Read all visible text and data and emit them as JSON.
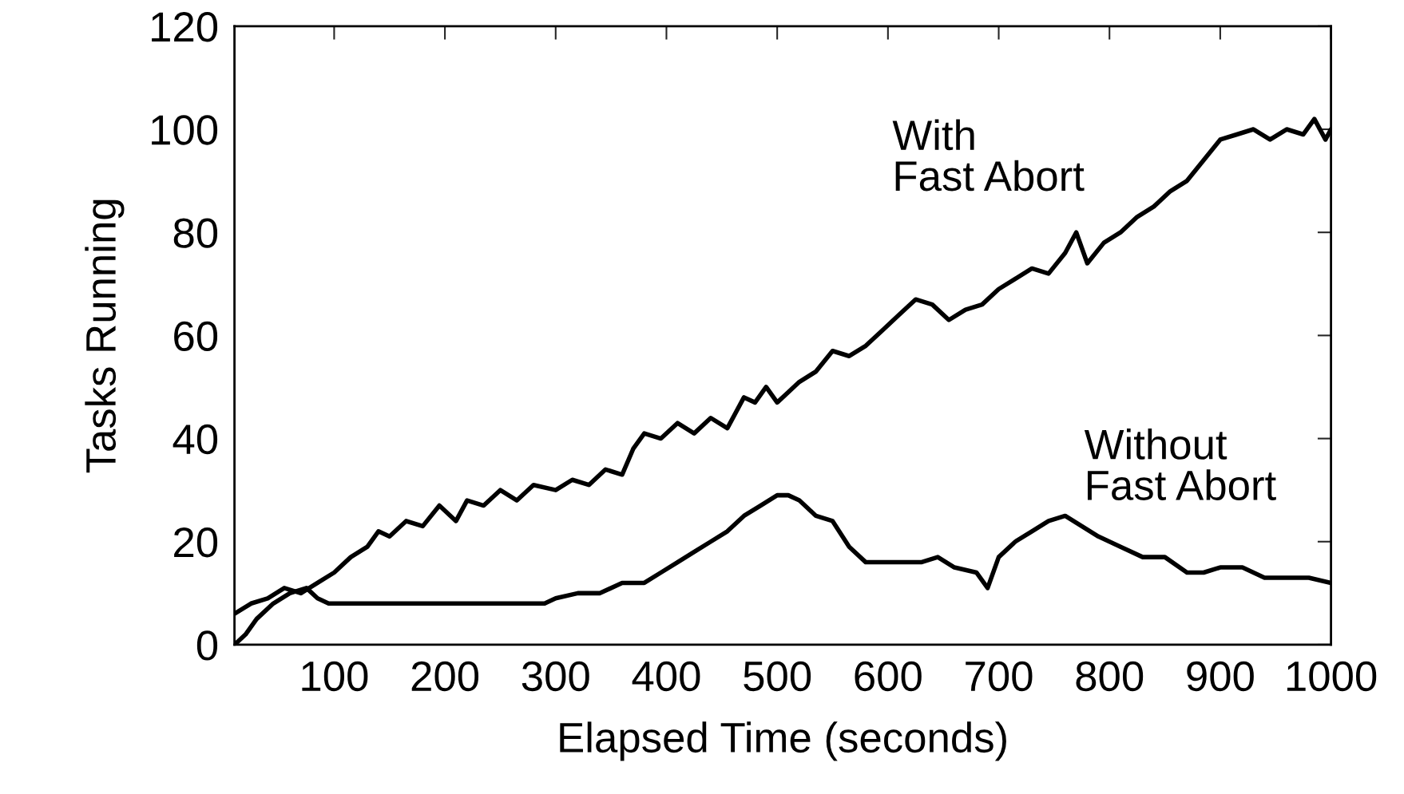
{
  "chart_data": {
    "type": "line",
    "xlabel": "Elapsed Time (seconds)",
    "ylabel": "Tasks Running",
    "xlim": [
      10,
      1000
    ],
    "ylim": [
      0,
      120
    ],
    "xticks": [
      100,
      200,
      300,
      400,
      500,
      600,
      700,
      800,
      900,
      1000
    ],
    "yticks": [
      0,
      20,
      40,
      60,
      80,
      100,
      120
    ],
    "grid": false,
    "line_style": "solid",
    "marker": "none",
    "series": [
      {
        "color": "#000000",
        "x": [
          10,
          25,
          40,
          55,
          70,
          85,
          100,
          115,
          130,
          140,
          150,
          165,
          180,
          195,
          200,
          210,
          220,
          235,
          250,
          265,
          280,
          300,
          315,
          330,
          345,
          360,
          370,
          380,
          395,
          410,
          425,
          440,
          455,
          470,
          480,
          490,
          500,
          510,
          520,
          535,
          550,
          565,
          580,
          595,
          610,
          625,
          640,
          655,
          670,
          685,
          700,
          715,
          730,
          745,
          760,
          770,
          780,
          795,
          810,
          825,
          840,
          855,
          870,
          885,
          900,
          915,
          930,
          945,
          960,
          975,
          985,
          995,
          1000
        ],
        "values": [
          6,
          8,
          9,
          11,
          10,
          12,
          14,
          17,
          19,
          22,
          21,
          24,
          23,
          27,
          26,
          24,
          28,
          27,
          30,
          28,
          31,
          30,
          32,
          31,
          34,
          33,
          38,
          41,
          40,
          43,
          41,
          44,
          42,
          48,
          47,
          50,
          47,
          49,
          51,
          53,
          57,
          56,
          58,
          61,
          64,
          67,
          66,
          63,
          65,
          66,
          69,
          71,
          73,
          72,
          76,
          80,
          74,
          78,
          80,
          83,
          85,
          88,
          90,
          94,
          98,
          99,
          100,
          98,
          100,
          99,
          102,
          98,
          100
        ]
      },
      {
        "color": "#000000",
        "x": [
          10,
          20,
          30,
          45,
          60,
          75,
          85,
          95,
          110,
          150,
          200,
          250,
          290,
          300,
          320,
          340,
          360,
          380,
          395,
          410,
          425,
          440,
          455,
          470,
          485,
          500,
          510,
          520,
          535,
          550,
          565,
          580,
          600,
          630,
          645,
          660,
          680,
          690,
          700,
          715,
          730,
          745,
          760,
          775,
          790,
          810,
          830,
          850,
          870,
          885,
          900,
          920,
          940,
          960,
          980,
          1000
        ],
        "values": [
          0,
          2,
          5,
          8,
          10,
          11,
          9,
          8,
          8,
          8,
          8,
          8,
          8,
          9,
          10,
          10,
          12,
          12,
          14,
          16,
          18,
          20,
          22,
          25,
          27,
          29,
          29,
          28,
          25,
          24,
          19,
          16,
          16,
          16,
          17,
          15,
          14,
          11,
          17,
          20,
          22,
          24,
          25,
          23,
          21,
          19,
          17,
          17,
          14,
          14,
          15,
          15,
          13,
          13,
          13,
          12
        ]
      }
    ],
    "annotations": [
      "With\nFast Abort",
      "Without\nFast Abort"
    ]
  }
}
